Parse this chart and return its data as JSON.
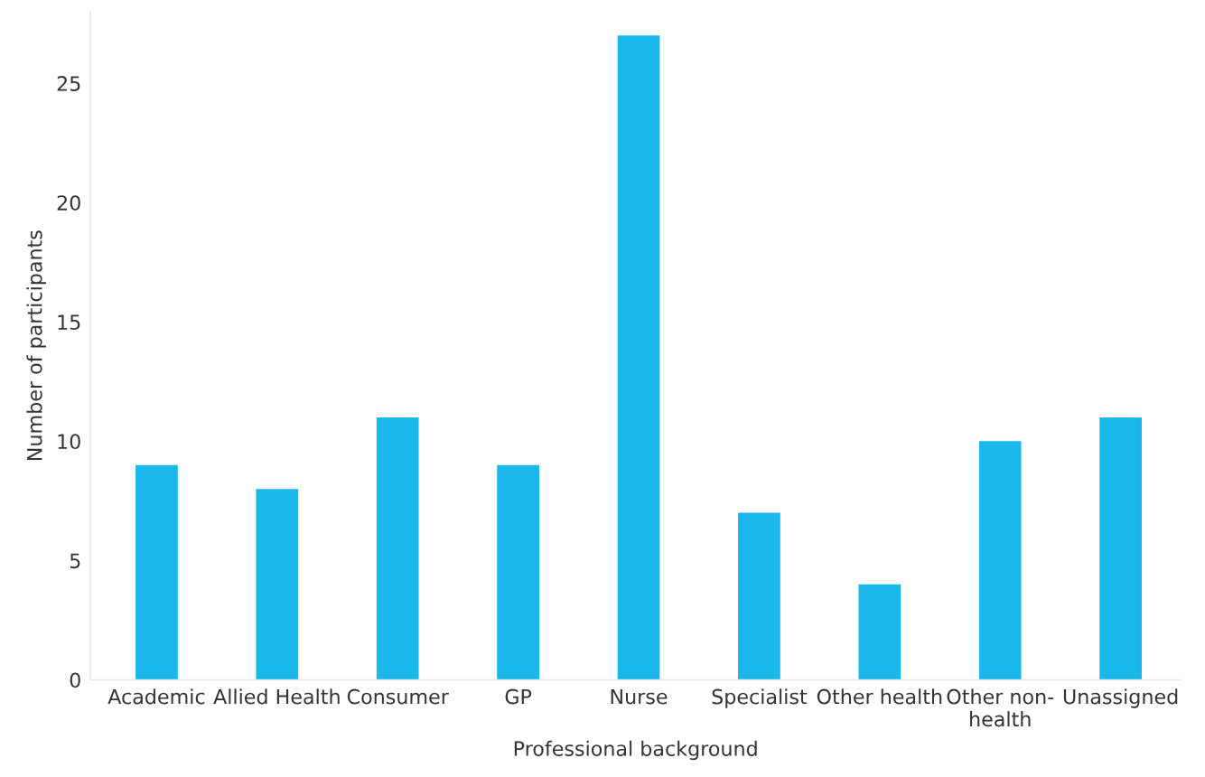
{
  "chart_data": {
    "type": "bar",
    "xlabel": "Professional background",
    "ylabel": "Number of participants",
    "categories": [
      "Academic",
      "Allied Health",
      "Consumer",
      "GP",
      "Nurse",
      "Specialist",
      "Other health",
      "Other non-health",
      "Unassigned"
    ],
    "values": [
      9,
      8,
      11,
      9,
      27,
      7,
      4,
      10,
      11
    ],
    "color": "#1ab8ea",
    "ylim": [
      0,
      28
    ],
    "yticks": [
      0,
      5,
      10,
      15,
      20,
      25
    ],
    "grid": false
  }
}
